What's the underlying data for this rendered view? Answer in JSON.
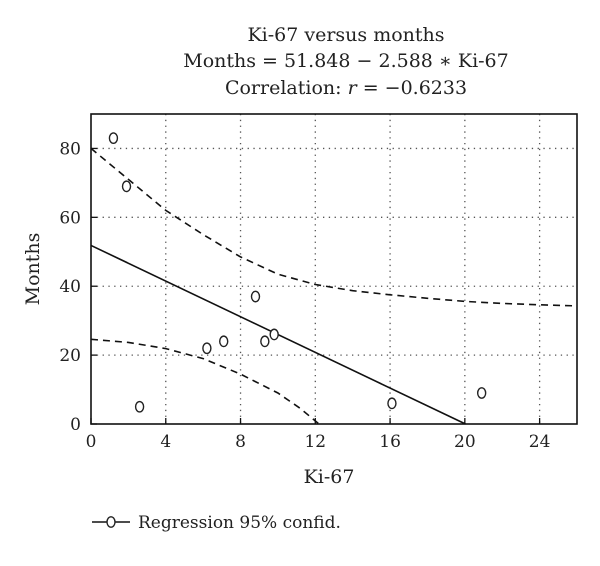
{
  "chart_data": {
    "type": "scatter",
    "title": "Ki-67 versus months",
    "subtitle_equation": "Months = 51.848 − 2.588 ∗ Ki-67",
    "subtitle_correlation_prefix": "Correlation: ",
    "subtitle_correlation_symbol": "r",
    "subtitle_correlation_value": " = −0.6233",
    "xlabel": "Ki-67",
    "ylabel": "Months",
    "xlim": [
      0,
      26
    ],
    "ylim": [
      0,
      90
    ],
    "xticks": [
      "0",
      "4",
      "8",
      "12",
      "16",
      "20",
      "24"
    ],
    "xtick_values": [
      0,
      4,
      8,
      12,
      16,
      20,
      24
    ],
    "yticks": [
      "0",
      "20",
      "40",
      "60",
      "80"
    ],
    "ytick_values": [
      0,
      20,
      40,
      60,
      80
    ],
    "grid": true,
    "legend_position": "bottom-left",
    "legend_label": "Regression 95% confid.",
    "points": [
      {
        "x": 1.2,
        "y": 83
      },
      {
        "x": 1.9,
        "y": 69
      },
      {
        "x": 2.6,
        "y": 5
      },
      {
        "x": 6.2,
        "y": 22
      },
      {
        "x": 7.1,
        "y": 24
      },
      {
        "x": 8.8,
        "y": 37
      },
      {
        "x": 9.3,
        "y": 24
      },
      {
        "x": 9.8,
        "y": 26
      },
      {
        "x": 16.1,
        "y": 6
      },
      {
        "x": 20.9,
        "y": 9
      }
    ],
    "regression": {
      "intercept": 51.848,
      "slope": -2.588
    },
    "upper_confidence_band": [
      {
        "x": 0,
        "y": 80
      },
      {
        "x": 2,
        "y": 71
      },
      {
        "x": 4,
        "y": 62
      },
      {
        "x": 6,
        "y": 55
      },
      {
        "x": 8,
        "y": 48.5
      },
      {
        "x": 10,
        "y": 43.5
      },
      {
        "x": 12,
        "y": 40.5
      },
      {
        "x": 14,
        "y": 38.7
      },
      {
        "x": 16,
        "y": 37.5
      },
      {
        "x": 18,
        "y": 36.5
      },
      {
        "x": 20,
        "y": 35.6
      },
      {
        "x": 22,
        "y": 35
      },
      {
        "x": 24,
        "y": 34.6
      },
      {
        "x": 26,
        "y": 34.3
      }
    ],
    "lower_confidence_band": [
      {
        "x": 0,
        "y": 24.6
      },
      {
        "x": 2,
        "y": 23.7
      },
      {
        "x": 4,
        "y": 21.9
      },
      {
        "x": 6,
        "y": 19
      },
      {
        "x": 8,
        "y": 14.5
      },
      {
        "x": 10,
        "y": 9
      },
      {
        "x": 11.2,
        "y": 4.5
      },
      {
        "x": 12.2,
        "y": 0
      }
    ],
    "colors": {
      "line": "#111111",
      "grid": "#555555",
      "marker_stroke": "#222222"
    }
  }
}
